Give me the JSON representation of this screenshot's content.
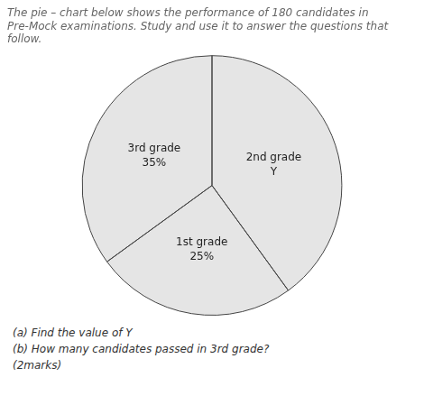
{
  "chart_data": {
    "type": "pie",
    "title": [
      "The pie – chart below shows the performance of 180 candidates in",
      "Pre-Mock examinations. Study and use it to answer the questions that",
      "follow."
    ],
    "categories": [
      "2nd grade",
      "1st grade",
      "3rd grade"
    ],
    "values": [
      40,
      25,
      35
    ],
    "value_labels": [
      "Y",
      "25%",
      "35%"
    ],
    "data_labels": true,
    "annotations": [
      "(a) Find the value of Y",
      "(b) How many candidates passed in 3rd grade?",
      "(2marks)"
    ]
  }
}
